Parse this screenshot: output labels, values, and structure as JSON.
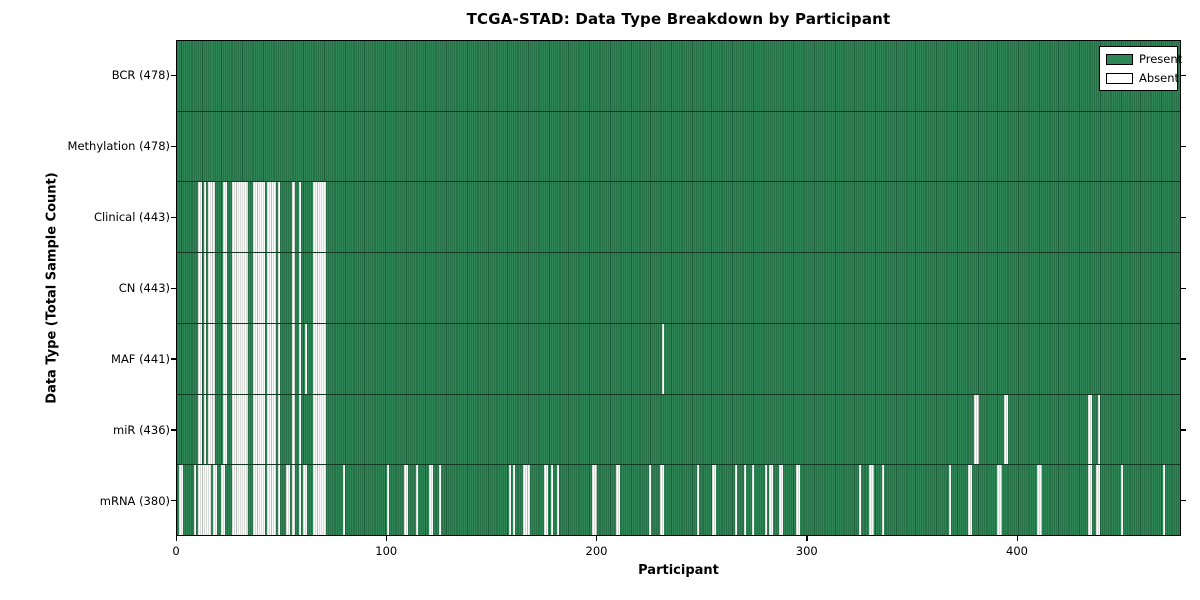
{
  "colors": {
    "present_fill": "#2e8656",
    "present_edge": "#1d5c39",
    "absent_fill": "#fbfbfb",
    "absent_edge": "#b9bdba",
    "axis": "#000000",
    "background": "#ffffff"
  },
  "chart_data": {
    "type": "heatmap",
    "title": "TCGA-STAD: Data Type Breakdown by Participant",
    "xlabel": "Participant",
    "ylabel": "Data Type (Total Sample Count)",
    "x_ticks": [
      0,
      100,
      200,
      300,
      400
    ],
    "xlim": [
      0,
      478
    ],
    "n_participants": 478,
    "grid": false,
    "legend": {
      "position": "upper right",
      "entries": [
        {
          "label": "Present",
          "color": "#2e8656"
        },
        {
          "label": "Absent",
          "color": "#ffffff"
        }
      ]
    },
    "rows": [
      {
        "label": "BCR (478)",
        "data_type": "BCR",
        "present_count": 478,
        "absent_ranges": []
      },
      {
        "label": "Methylation (478)",
        "data_type": "Methylation",
        "present_count": 478,
        "absent_ranges": []
      },
      {
        "label": "Clinical (443)",
        "data_type": "Clinical",
        "present_count": 443,
        "absent_ranges": [
          [
            10,
            12
          ],
          [
            13,
            14
          ],
          [
            15,
            18
          ],
          [
            22,
            24
          ],
          [
            26,
            34
          ],
          [
            36,
            42
          ],
          [
            43,
            47
          ],
          [
            48,
            49
          ],
          [
            55,
            56
          ],
          [
            58,
            59
          ],
          [
            65,
            71
          ]
        ]
      },
      {
        "label": "CN (443)",
        "data_type": "CN",
        "present_count": 443,
        "absent_ranges": [
          [
            10,
            12
          ],
          [
            13,
            14
          ],
          [
            15,
            18
          ],
          [
            22,
            24
          ],
          [
            26,
            34
          ],
          [
            36,
            42
          ],
          [
            43,
            47
          ],
          [
            48,
            49
          ],
          [
            55,
            56
          ],
          [
            58,
            59
          ],
          [
            65,
            71
          ]
        ]
      },
      {
        "label": "MAF (441)",
        "data_type": "MAF",
        "present_count": 441,
        "absent_ranges": [
          [
            10,
            12
          ],
          [
            13,
            14
          ],
          [
            15,
            18
          ],
          [
            22,
            24
          ],
          [
            26,
            34
          ],
          [
            36,
            42
          ],
          [
            43,
            47
          ],
          [
            48,
            49
          ],
          [
            55,
            56
          ],
          [
            58,
            59
          ],
          [
            61,
            62
          ],
          [
            65,
            71
          ],
          [
            231,
            232
          ]
        ]
      },
      {
        "label": "miR (436)",
        "data_type": "miR",
        "present_count": 436,
        "absent_ranges": [
          [
            10,
            12
          ],
          [
            13,
            14
          ],
          [
            15,
            18
          ],
          [
            22,
            24
          ],
          [
            26,
            34
          ],
          [
            36,
            42
          ],
          [
            43,
            47
          ],
          [
            48,
            49
          ],
          [
            55,
            56
          ],
          [
            58,
            59
          ],
          [
            65,
            71
          ],
          [
            380,
            382
          ],
          [
            394,
            396
          ],
          [
            434,
            436
          ],
          [
            439,
            440
          ]
        ]
      },
      {
        "label": "mRNA (380)",
        "data_type": "mRNA",
        "present_count": 380,
        "absent_ranges": [
          [
            1,
            3
          ],
          [
            8,
            9
          ],
          [
            10,
            16
          ],
          [
            17,
            19
          ],
          [
            21,
            23
          ],
          [
            26,
            34
          ],
          [
            36,
            42
          ],
          [
            43,
            47
          ],
          [
            48,
            49
          ],
          [
            52,
            54
          ],
          [
            55,
            56
          ],
          [
            58,
            59
          ],
          [
            60,
            62
          ],
          [
            65,
            71
          ],
          [
            79,
            80
          ],
          [
            100,
            101
          ],
          [
            108,
            110
          ],
          [
            114,
            115
          ],
          [
            120,
            122
          ],
          [
            125,
            126
          ],
          [
            158,
            159
          ],
          [
            160,
            161
          ],
          [
            165,
            168
          ],
          [
            175,
            177
          ],
          [
            178,
            179
          ],
          [
            181,
            182
          ],
          [
            198,
            200
          ],
          [
            209,
            211
          ],
          [
            225,
            226
          ],
          [
            230,
            232
          ],
          [
            248,
            249
          ],
          [
            255,
            257
          ],
          [
            266,
            267
          ],
          [
            270,
            271
          ],
          [
            274,
            275
          ],
          [
            280,
            281
          ],
          [
            282,
            284
          ],
          [
            287,
            289
          ],
          [
            295,
            297
          ],
          [
            325,
            326
          ],
          [
            330,
            332
          ],
          [
            336,
            337
          ],
          [
            368,
            369
          ],
          [
            377,
            379
          ],
          [
            391,
            393
          ],
          [
            410,
            412
          ],
          [
            434,
            436
          ],
          [
            438,
            440
          ],
          [
            450,
            451
          ],
          [
            470,
            471
          ]
        ]
      }
    ]
  }
}
